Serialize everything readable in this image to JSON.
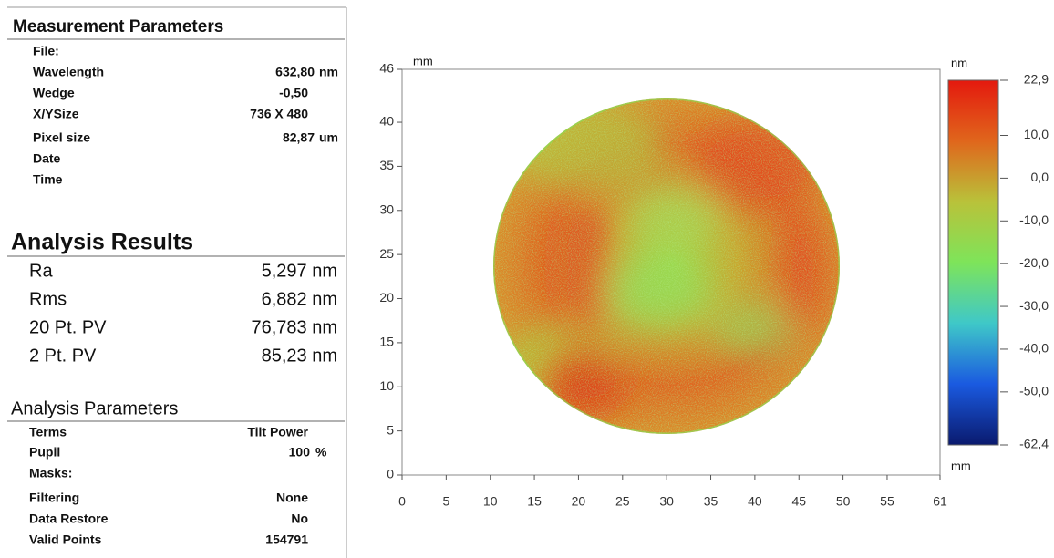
{
  "measurement_parameters": {
    "title": "Measurement Parameters",
    "rows": [
      {
        "label": "File:"
      },
      {
        "label": "Wavelength",
        "value": "632,80",
        "unit": "nm"
      },
      {
        "label": "Wedge",
        "value": "-0,50"
      },
      {
        "label": "X/YSize",
        "value": "736 X 480"
      },
      {
        "label": "Pixel size",
        "value": "82,87",
        "unit": "um"
      },
      {
        "label": "Date"
      },
      {
        "label": "Time"
      }
    ]
  },
  "analysis_results": {
    "title": "Analysis Results",
    "rows": [
      {
        "label": "Ra",
        "value": "5,297 nm"
      },
      {
        "label": "Rms",
        "value": "6,882 nm"
      },
      {
        "label": "20 Pt. PV",
        "value": "76,783 nm"
      },
      {
        "label": "2 Pt. PV",
        "value": "85,23 nm"
      }
    ]
  },
  "analysis_parameters": {
    "title": "Analysis Parameters",
    "rows": [
      {
        "label": "Terms",
        "value": "Tilt Power"
      },
      {
        "label": "Pupil",
        "value": "100",
        "unit": "%"
      },
      {
        "label": "Masks:"
      },
      {
        "label": "Filtering",
        "value": "None"
      },
      {
        "label": "Data Restore",
        "value": "No"
      },
      {
        "label": "Valid Points",
        "value": "154791"
      }
    ]
  },
  "map": {
    "x_unit": "mm",
    "y_unit": "mm",
    "xlim": [
      0,
      61
    ],
    "ylim": [
      0,
      46
    ],
    "xticks": [
      0,
      5,
      10,
      15,
      20,
      25,
      30,
      35,
      40,
      45,
      50,
      55,
      61
    ],
    "yticks": [
      0,
      5,
      10,
      15,
      20,
      25,
      30,
      35,
      40,
      46
    ],
    "colorbar": {
      "unit": "nm",
      "lateral_unit": "mm",
      "lim": [
        -62.4,
        22.9
      ],
      "ticks": [
        {
          "value": 22.9,
          "label": "22,9"
        },
        {
          "value": 10,
          "label": "10,0"
        },
        {
          "value": 0,
          "label": "0,0"
        },
        {
          "value": -10,
          "label": "-10,0"
        },
        {
          "value": -20,
          "label": "-20,0"
        },
        {
          "value": -30,
          "label": "-30,0"
        },
        {
          "value": -40,
          "label": "-40,0"
        },
        {
          "value": -50,
          "label": "-50,0"
        },
        {
          "value": -62.4,
          "label": "-62,4"
        }
      ],
      "colors": [
        "#e4190e",
        "#e0661c",
        "#b9c23a",
        "#7ee45a",
        "#3fc8c8",
        "#1a5ae0",
        "#0a1a6e"
      ]
    }
  }
}
